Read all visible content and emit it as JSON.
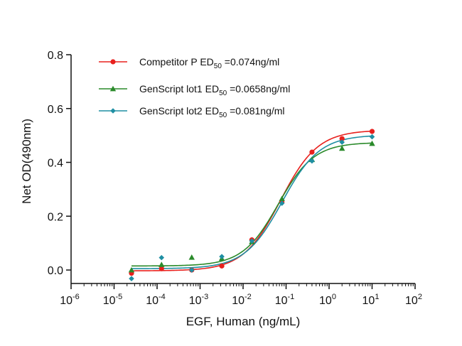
{
  "chart_data": {
    "type": "scatter",
    "title": "",
    "xlabel": "EGF, Human (ng/mL)",
    "ylabel": "Net OD(490nm)",
    "x_scale": "log",
    "xlim": [
      1e-06,
      100
    ],
    "ylim": [
      -0.05,
      0.8
    ],
    "x_ticks": [
      {
        "base": "10",
        "exp": "-6"
      },
      {
        "base": "10",
        "exp": "-5"
      },
      {
        "base": "10",
        "exp": "-4"
      },
      {
        "base": "10",
        "exp": "-3"
      },
      {
        "base": "10",
        "exp": "-2"
      },
      {
        "base": "10",
        "exp": "-1"
      },
      {
        "base": "10",
        "exp": "0"
      },
      {
        "base": "10",
        "exp": "1"
      },
      {
        "base": "10",
        "exp": "2"
      }
    ],
    "y_ticks": [
      "0.0",
      "0.2",
      "0.4",
      "0.6",
      "0.8"
    ],
    "legend_position": "top-left",
    "grid": false,
    "series": [
      {
        "name_main": "Competitor P  ED",
        "name_sub": "50",
        "name_tail": " =0.074ng/ml",
        "color": "#e8201d",
        "marker": "circle",
        "x": [
          2.54e-05,
          0.000127,
          0.00064,
          0.0032,
          0.016,
          0.08,
          0.4,
          2,
          10
        ],
        "y": [
          -0.012,
          0.005,
          0.0,
          0.015,
          0.112,
          0.252,
          0.438,
          0.488,
          0.515
        ],
        "fit": {
          "bottom": -0.003,
          "top": 0.52,
          "ec50": 0.074,
          "hill": 1.0
        }
      },
      {
        "name_main": "GenScript lot1 ED",
        "name_sub": "50",
        "name_tail": " =0.0658ng/ml",
        "color": "#2a8a2a",
        "marker": "triangle",
        "x": [
          2.54e-05,
          0.000127,
          0.00064,
          0.0032,
          0.016,
          0.08,
          0.4,
          2,
          10
        ],
        "y": [
          0.0,
          0.02,
          0.047,
          0.043,
          0.105,
          0.265,
          0.41,
          0.452,
          0.47
        ],
        "fit": {
          "bottom": 0.015,
          "top": 0.474,
          "ec50": 0.0658,
          "hill": 1.05
        }
      },
      {
        "name_main": "GenScript lot2 ED",
        "name_sub": "50",
        "name_tail": " =0.081ng/ml",
        "color": "#1f8fa3",
        "marker": "diamond",
        "x": [
          2.54e-05,
          0.000127,
          0.00064,
          0.0032,
          0.016,
          0.08,
          0.4,
          2,
          10
        ],
        "y": [
          -0.032,
          0.046,
          0.0,
          0.05,
          0.108,
          0.248,
          0.405,
          0.475,
          0.495
        ],
        "fit": {
          "bottom": 0.005,
          "top": 0.502,
          "ec50": 0.081,
          "hill": 1.0
        }
      }
    ]
  }
}
